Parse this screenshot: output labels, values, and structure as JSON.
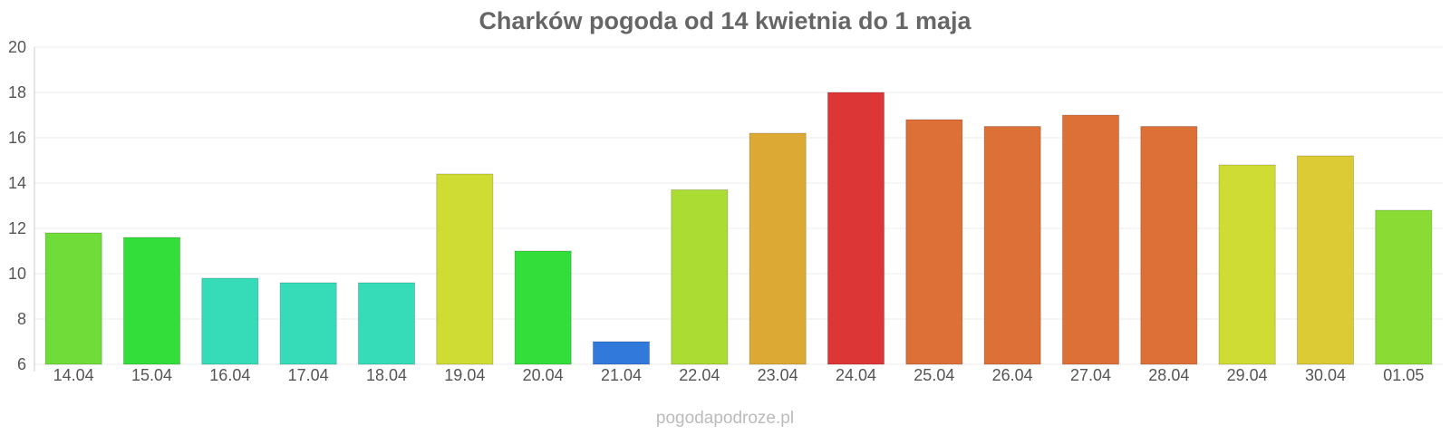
{
  "chart_data": {
    "type": "bar",
    "title": "Charków pogoda od 14 kwietnia do 1 maja",
    "xlabel": "",
    "ylabel": "",
    "ylim": [
      6,
      20
    ],
    "yticks": [
      6,
      8,
      10,
      12,
      14,
      16,
      18,
      20
    ],
    "grid": true,
    "legend": "none",
    "categories": [
      "14.04",
      "15.04",
      "16.04",
      "17.04",
      "18.04",
      "19.04",
      "20.04",
      "21.04",
      "22.04",
      "23.04",
      "24.04",
      "25.04",
      "26.04",
      "27.04",
      "28.04",
      "29.04",
      "30.04",
      "01.05"
    ],
    "values": [
      11.8,
      11.6,
      9.8,
      9.6,
      9.6,
      14.4,
      11.0,
      7.0,
      13.7,
      16.2,
      18.0,
      16.8,
      16.5,
      17.0,
      16.5,
      14.8,
      15.2,
      12.8
    ],
    "colors": [
      "#6fdc39",
      "#33dd3a",
      "#36dcb8",
      "#36dcb8",
      "#36dcb8",
      "#cfdc34",
      "#33dd3a",
      "#3279dc",
      "#abdc34",
      "#dcaa34",
      "#dc3636",
      "#dc7036",
      "#dc7036",
      "#dc7036",
      "#dc7036",
      "#cfdc34",
      "#dccb34",
      "#8adc34"
    ]
  },
  "watermark": "pogodapodroze.pl"
}
